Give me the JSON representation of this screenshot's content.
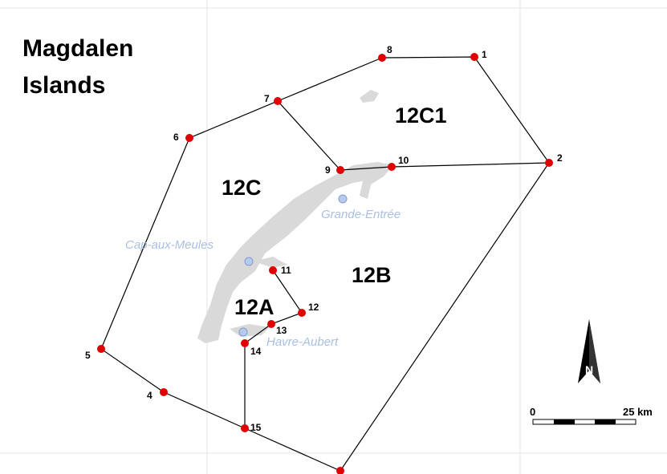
{
  "title": [
    "Magdalen",
    "Islands"
  ],
  "zones": [
    "12C1",
    "12C",
    "12B",
    "12A"
  ],
  "points": [
    "1",
    "2",
    "4",
    "5",
    "6",
    "7",
    "8",
    "9",
    "10",
    "11",
    "12",
    "13",
    "14",
    "15"
  ],
  "places": [
    "Grande-Entrée",
    "Cap-aux-Meules",
    "Havre-Aubert"
  ],
  "compass": "N",
  "scale": {
    "start": "0",
    "end": "25 km"
  }
}
